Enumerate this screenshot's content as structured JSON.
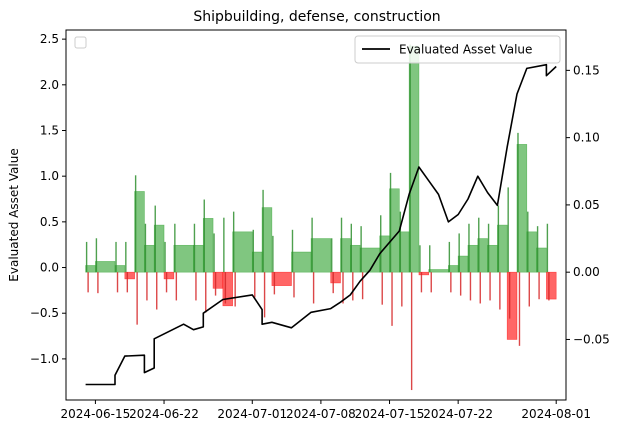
{
  "chart_data": {
    "type": "line",
    "title": "Shipbuilding, defense, construction",
    "ylabel": "Evaluated Asset Value",
    "y2label": "",
    "xlim": [
      "2024-06-12",
      "2024-08-02"
    ],
    "ylim": [
      -1.45,
      2.6
    ],
    "y2lim": [
      -0.095,
      0.18
    ],
    "x_ticks": [
      "2024-06-15",
      "2024-06-22",
      "2024-07-01",
      "2024-07-08",
      "2024-07-15",
      "2024-07-22",
      "2024-08-01"
    ],
    "y_ticks": [
      -1.0,
      -0.5,
      0.0,
      0.5,
      1.0,
      1.5,
      2.0,
      2.5
    ],
    "y_tick_labels": [
      "−1.0",
      "−0.5",
      "0.0",
      "0.5",
      "1.0",
      "1.5",
      "2.0",
      "2.5"
    ],
    "y2_ticks": [
      -0.05,
      0.0,
      0.05,
      0.1,
      0.15
    ],
    "y2_tick_labels": [
      "−0.05",
      "0.00",
      "0.05",
      "0.10",
      "0.15"
    ],
    "legend": {
      "entries": [
        "Evaluated Asset Value"
      ],
      "placement": "top-right"
    },
    "empty_legend_placement": "top-left",
    "colors": {
      "line": "#000000",
      "positive": "#2ca02c",
      "negative": "#ff0000",
      "spike_positive": "#2f8f2f",
      "spike_negative": "#d62728"
    },
    "series": [
      {
        "name": "Evaluated Asset Value",
        "axis": "left",
        "x": [
          "2024-06-14",
          "2024-06-17",
          "2024-06-17",
          "2024-06-18",
          "2024-06-20",
          "2024-06-20",
          "2024-06-21",
          "2024-06-21",
          "2024-06-24",
          "2024-06-25",
          "2024-06-26",
          "2024-06-26",
          "2024-06-28",
          "2024-07-01",
          "2024-07-02",
          "2024-07-02",
          "2024-07-03",
          "2024-07-05",
          "2024-07-07",
          "2024-07-09",
          "2024-07-10",
          "2024-07-11",
          "2024-07-12",
          "2024-07-13",
          "2024-07-14",
          "2024-07-16",
          "2024-07-17",
          "2024-07-18",
          "2024-07-19",
          "2024-07-20",
          "2024-07-21",
          "2024-07-22",
          "2024-07-23",
          "2024-07-24",
          "2024-07-25",
          "2024-07-26",
          "2024-07-27",
          "2024-07-28",
          "2024-07-29",
          "2024-07-31",
          "2024-07-31",
          "2024-08-01"
        ],
        "values": [
          -1.28,
          -1.28,
          -1.18,
          -0.97,
          -0.96,
          -1.15,
          -1.1,
          -0.78,
          -0.62,
          -0.68,
          -0.65,
          -0.5,
          -0.35,
          -0.3,
          -0.46,
          -0.62,
          -0.6,
          -0.66,
          -0.49,
          -0.45,
          -0.38,
          -0.3,
          -0.15,
          -0.03,
          0.15,
          0.4,
          0.8,
          1.1,
          0.95,
          0.8,
          0.5,
          0.58,
          0.75,
          1.0,
          0.82,
          0.68,
          1.32,
          1.9,
          2.18,
          2.22,
          2.1,
          2.2
        ]
      },
      {
        "name": "",
        "axis": "right",
        "type": "bar",
        "x_start": [
          "2024-06-14",
          "2024-06-15",
          "2024-06-17",
          "2024-06-18",
          "2024-06-19",
          "2024-06-20",
          "2024-06-21",
          "2024-06-22",
          "2024-06-23",
          "2024-06-25",
          "2024-06-26",
          "2024-06-27",
          "2024-06-28",
          "2024-06-29",
          "2024-07-01",
          "2024-07-02",
          "2024-07-03",
          "2024-07-05",
          "2024-07-07",
          "2024-07-09",
          "2024-07-10",
          "2024-07-11",
          "2024-07-12",
          "2024-07-14",
          "2024-07-15",
          "2024-07-16",
          "2024-07-17",
          "2024-07-18",
          "2024-07-19",
          "2024-07-21",
          "2024-07-22",
          "2024-07-23",
          "2024-07-24",
          "2024-07-25",
          "2024-07-26",
          "2024-07-27",
          "2024-07-28",
          "2024-07-29",
          "2024-07-30",
          "2024-07-31"
        ],
        "values": [
          0.005,
          0.008,
          0.005,
          -0.005,
          0.06,
          0.02,
          0.035,
          -0.005,
          0.02,
          0.02,
          0.04,
          -0.012,
          -0.025,
          0.03,
          0.015,
          0.048,
          -0.01,
          0.015,
          0.025,
          -0.008,
          0.025,
          0.02,
          0.018,
          0.027,
          0.062,
          0.03,
          0.168,
          -0.002,
          0.002,
          0.005,
          0.012,
          0.02,
          0.025,
          0.02,
          0.035,
          -0.05,
          0.095,
          0.03,
          0.018,
          -0.02
        ]
      }
    ]
  }
}
